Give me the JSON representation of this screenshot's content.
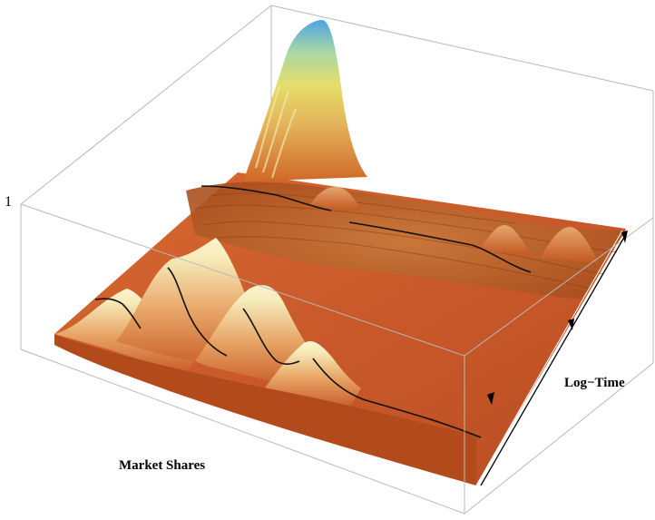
{
  "chart_data": {
    "type": "surface",
    "title": "",
    "xlabel": "Market Shares",
    "ylabel": "Log−Time",
    "z_tick_labels": [
      "1"
    ],
    "colors": {
      "low": "#c4551f",
      "mid": "#e9a968",
      "light": "#f3e4a8",
      "yellow": "#e6df6a",
      "peak": "#4fa6e6",
      "box": "#b5b5b5"
    },
    "grid": false,
    "legend": "none"
  }
}
